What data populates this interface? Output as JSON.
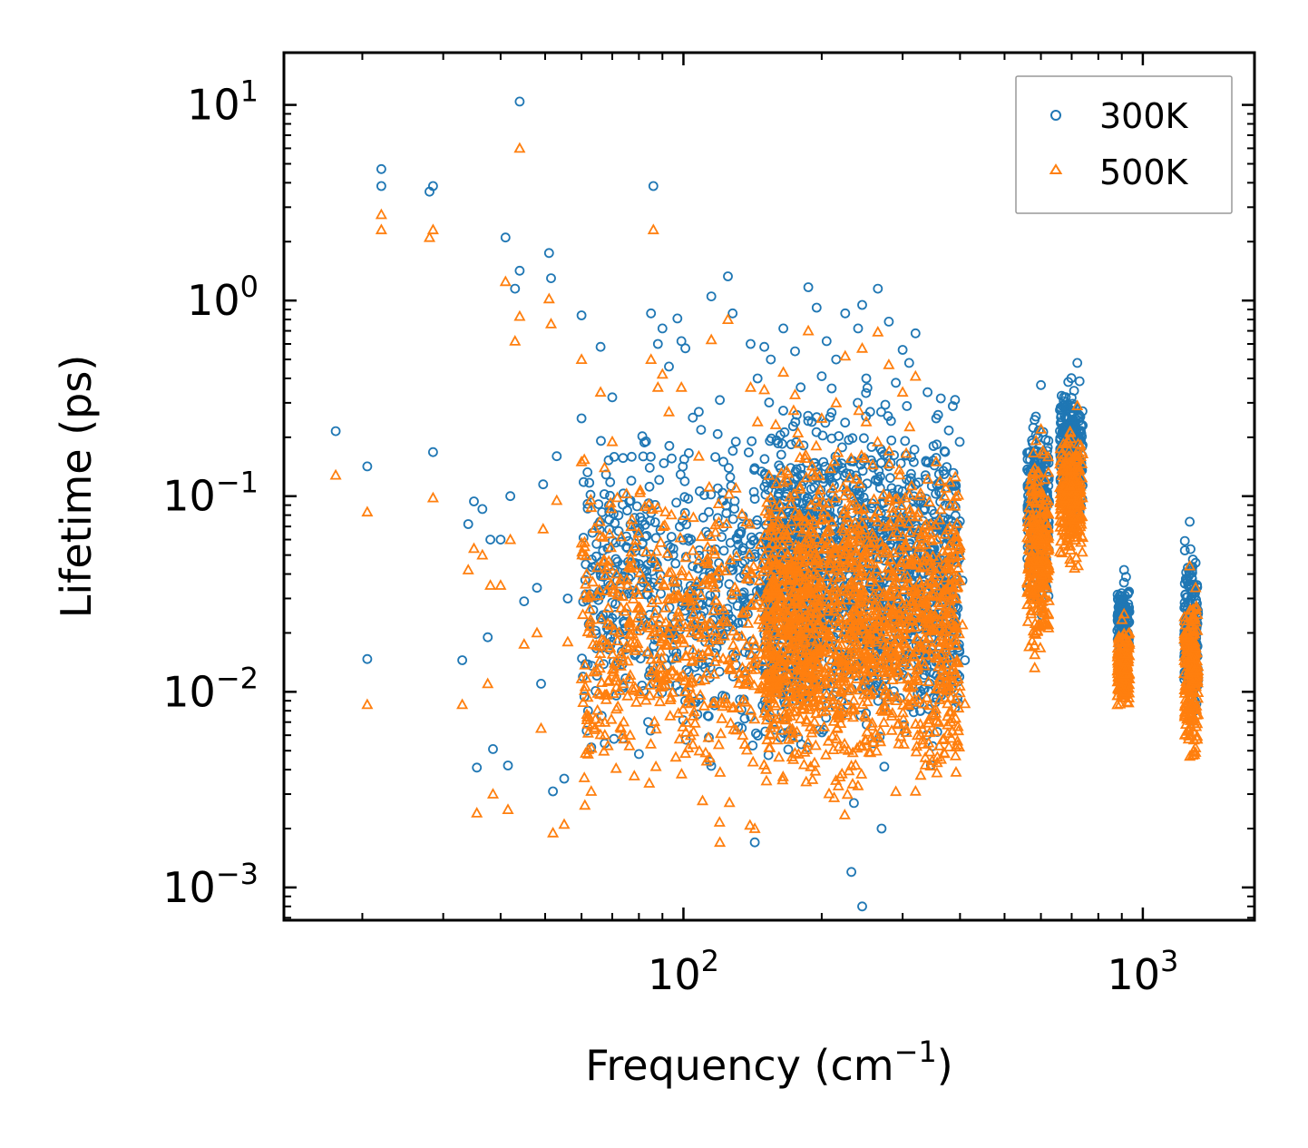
{
  "chart_data": {
    "type": "scatter",
    "xscale": "log",
    "yscale": "log",
    "xlabel": "Frequency (cm",
    "xlabel_sup": "−1",
    "xlabel_end": ")",
    "ylabel": "Lifetime (ps)",
    "xlim": [
      13.5,
      1750
    ],
    "ylim": [
      0.00068,
      18.5
    ],
    "xticks": [
      {
        "value": 100,
        "base": "10",
        "exp": "2"
      },
      {
        "value": 1000,
        "base": "10",
        "exp": "3"
      }
    ],
    "yticks": [
      {
        "value": 0.001,
        "base": "10",
        "exp": "−3"
      },
      {
        "value": 0.01,
        "base": "10",
        "exp": "−2"
      },
      {
        "value": 0.1,
        "base": "10",
        "exp": "−1"
      },
      {
        "value": 1,
        "base": "10",
        "exp": "0"
      },
      {
        "value": 10,
        "base": "10",
        "exp": "1"
      }
    ],
    "legend": {
      "position": "top-right"
    },
    "series": [
      {
        "name": "300K",
        "marker": "circle",
        "color": "#1f77b4",
        "points": [
          [
            17.5,
            0.215
          ],
          [
            20.5,
            0.142
          ],
          [
            20.5,
            0.0147
          ],
          [
            22,
            4.7
          ],
          [
            22,
            3.85
          ],
          [
            28,
            3.6
          ],
          [
            28.5,
            3.85
          ],
          [
            28.5,
            0.168
          ],
          [
            33,
            0.0145
          ],
          [
            34,
            0.072
          ],
          [
            35,
            0.094
          ],
          [
            35.5,
            0.0041
          ],
          [
            36.5,
            0.086
          ],
          [
            37.5,
            0.019
          ],
          [
            38,
            0.06
          ],
          [
            38.5,
            0.0051
          ],
          [
            40,
            0.06
          ],
          [
            41,
            2.1
          ],
          [
            41.5,
            0.0042
          ],
          [
            42,
            0.1
          ],
          [
            43,
            1.15
          ],
          [
            44,
            1.42
          ],
          [
            44,
            10.4
          ],
          [
            45,
            0.029
          ],
          [
            48,
            0.034
          ],
          [
            49,
            0.011
          ],
          [
            49.5,
            0.115
          ],
          [
            51,
            1.75
          ],
          [
            51.5,
            1.3
          ],
          [
            52,
            0.0031
          ],
          [
            53,
            0.16
          ],
          [
            55,
            0.0036
          ],
          [
            56,
            0.03
          ],
          [
            60,
            0.84
          ],
          [
            60,
            0.25
          ],
          [
            62,
            0.008
          ],
          [
            63,
            0.0052
          ],
          [
            66,
            0.58
          ],
          [
            70,
            0.32
          ],
          [
            72,
            0.014
          ],
          [
            74,
            0.018
          ],
          [
            77,
            0.12
          ],
          [
            80,
            0.045
          ],
          [
            83,
            0.086
          ],
          [
            85,
            0.86
          ],
          [
            86,
            3.85
          ],
          [
            88,
            0.6
          ],
          [
            90,
            0.72
          ],
          [
            93,
            0.46
          ],
          [
            95,
            0.05
          ],
          [
            97,
            0.81
          ],
          [
            99,
            0.62
          ],
          [
            101,
            0.57
          ],
          [
            104,
            0.033
          ],
          [
            108,
            0.27
          ],
          [
            115,
            1.05
          ],
          [
            120,
            0.31
          ],
          [
            125,
            1.33
          ],
          [
            128,
            0.86
          ],
          [
            130,
            0.19
          ],
          [
            140,
            0.6
          ],
          [
            143,
            0.0017
          ],
          [
            145,
            0.4
          ],
          [
            150,
            0.58
          ],
          [
            155,
            0.5
          ],
          [
            165,
            0.72
          ],
          [
            175,
            0.55
          ],
          [
            180,
            0.36
          ],
          [
            187,
            1.17
          ],
          [
            195,
            0.92
          ],
          [
            200,
            0.41
          ],
          [
            205,
            0.62
          ],
          [
            215,
            0.5
          ],
          [
            225,
            0.86
          ],
          [
            232,
            0.0012
          ],
          [
            235,
            0.0027
          ],
          [
            240,
            0.72
          ],
          [
            245,
            0.95
          ],
          [
            245,
            0.0008
          ],
          [
            250,
            0.4
          ],
          [
            255,
            0.27
          ],
          [
            265,
            1.15
          ],
          [
            270,
            0.002
          ],
          [
            280,
            0.78
          ],
          [
            290,
            0.38
          ],
          [
            300,
            0.56
          ],
          [
            310,
            0.48
          ],
          [
            320,
            0.68
          ],
          [
            340,
            0.34
          ],
          [
            355,
            0.25
          ],
          [
            370,
            0.17
          ],
          [
            385,
            0.0105
          ],
          [
            395,
            0.0093
          ],
          [
            405,
            0.037
          ],
          [
            410,
            0.0145
          ],
          [
            600,
            0.37
          ],
          [
            720,
            0.48
          ],
          [
            910,
            0.042
          ],
          [
            1265,
            0.074
          ]
        ],
        "clusters": [
          [
            60,
            200,
            0.003,
            0.35,
            700
          ],
          [
            150,
            400,
            0.003,
            0.5,
            1400
          ],
          [
            560,
            625,
            0.02,
            0.38,
            260
          ],
          [
            660,
            740,
            0.06,
            0.47,
            260
          ],
          [
            880,
            935,
            0.012,
            0.042,
            160
          ],
          [
            1230,
            1320,
            0.006,
            0.07,
            220
          ]
        ]
      },
      {
        "name": "500K",
        "marker": "triangle",
        "color": "#ff7f0e",
        "points": [
          [
            17.5,
            0.128
          ],
          [
            20.5,
            0.083
          ],
          [
            20.5,
            0.0086
          ],
          [
            22,
            2.75
          ],
          [
            22,
            2.3
          ],
          [
            28,
            2.1
          ],
          [
            28.5,
            2.3
          ],
          [
            28.5,
            0.098
          ],
          [
            33,
            0.0086
          ],
          [
            34,
            0.042
          ],
          [
            35,
            0.054
          ],
          [
            35.5,
            0.0024
          ],
          [
            36.5,
            0.05
          ],
          [
            37.5,
            0.011
          ],
          [
            38,
            0.035
          ],
          [
            38.5,
            0.003
          ],
          [
            40,
            0.035
          ],
          [
            41,
            1.25
          ],
          [
            41.5,
            0.0025
          ],
          [
            42,
            0.06
          ],
          [
            43,
            0.62
          ],
          [
            44,
            0.83
          ],
          [
            44,
            6.0
          ],
          [
            45,
            0.0175
          ],
          [
            48,
            0.02
          ],
          [
            49,
            0.0065
          ],
          [
            49.5,
            0.068
          ],
          [
            51,
            1.02
          ],
          [
            51.5,
            0.76
          ],
          [
            52,
            0.0019
          ],
          [
            53,
            0.095
          ],
          [
            55,
            0.0021
          ],
          [
            56,
            0.018
          ],
          [
            60,
            0.5
          ],
          [
            60,
            0.15
          ],
          [
            62,
            0.0048
          ],
          [
            63,
            0.0031
          ],
          [
            66,
            0.34
          ],
          [
            70,
            0.19
          ],
          [
            72,
            0.0084
          ],
          [
            74,
            0.011
          ],
          [
            77,
            0.07
          ],
          [
            80,
            0.027
          ],
          [
            83,
            0.052
          ],
          [
            85,
            0.5
          ],
          [
            86,
            2.3
          ],
          [
            88,
            0.36
          ],
          [
            90,
            0.42
          ],
          [
            93,
            0.27
          ],
          [
            95,
            0.03
          ],
          [
            99,
            0.36
          ],
          [
            104,
            0.02
          ],
          [
            108,
            0.16
          ],
          [
            115,
            0.63
          ],
          [
            120,
            0.0017
          ],
          [
            125,
            0.8
          ],
          [
            130,
            0.11
          ],
          [
            140,
            0.36
          ],
          [
            143,
            0.002
          ],
          [
            145,
            0.24
          ],
          [
            150,
            0.35
          ],
          [
            165,
            0.43
          ],
          [
            175,
            0.33
          ],
          [
            187,
            0.7
          ],
          [
            200,
            0.25
          ],
          [
            215,
            0.3
          ],
          [
            225,
            0.52
          ],
          [
            245,
            0.57
          ],
          [
            250,
            0.24
          ],
          [
            265,
            0.69
          ],
          [
            280,
            0.47
          ],
          [
            300,
            0.34
          ],
          [
            320,
            0.41
          ],
          [
            355,
            0.15
          ],
          [
            370,
            0.1
          ],
          [
            385,
            0.0063
          ],
          [
            395,
            0.0056
          ],
          [
            405,
            0.022
          ],
          [
            410,
            0.0087
          ],
          [
            600,
            0.22
          ],
          [
            720,
            0.29
          ],
          [
            910,
            0.025
          ],
          [
            1265,
            0.044
          ]
        ],
        "clusters": [
          [
            60,
            200,
            0.0018,
            0.21,
            700
          ],
          [
            150,
            400,
            0.0018,
            0.3,
            1400
          ],
          [
            560,
            625,
            0.012,
            0.23,
            260
          ],
          [
            660,
            740,
            0.035,
            0.28,
            260
          ],
          [
            880,
            935,
            0.007,
            0.025,
            160
          ],
          [
            1230,
            1320,
            0.0036,
            0.042,
            220
          ]
        ]
      }
    ]
  }
}
